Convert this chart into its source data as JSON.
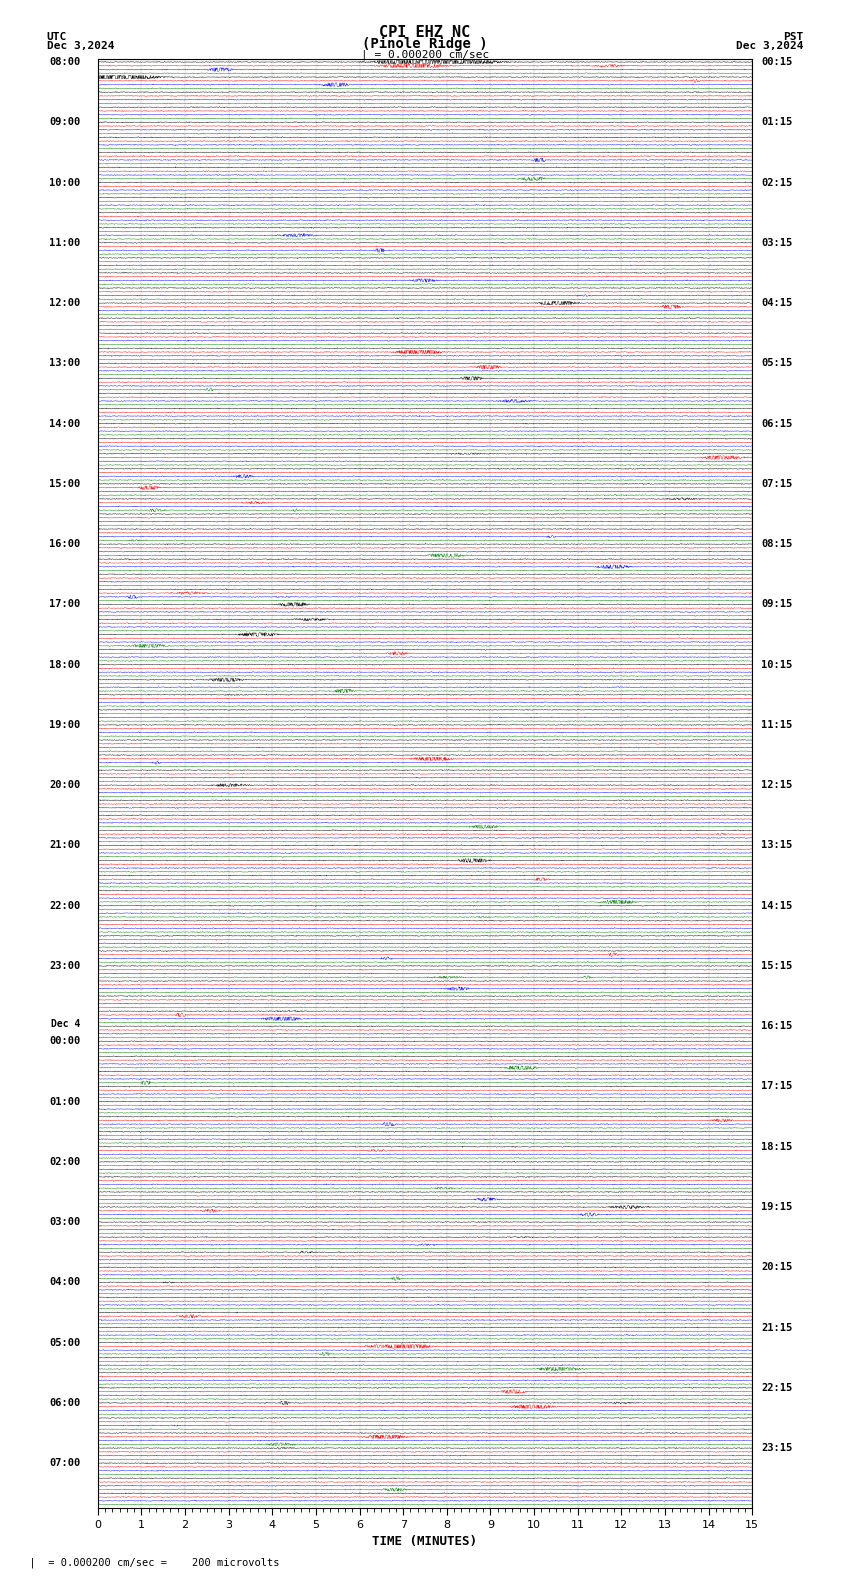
{
  "title_line1": "CPI EHZ NC",
  "title_line2": "(Pinole Ridge )",
  "scale_label": "| = 0.000200 cm/sec",
  "footer_label": "= 0.000200 cm/sec =    200 microvolts",
  "utc_label": "UTC",
  "utc_date": "Dec 3,2024",
  "pst_label": "PST",
  "pst_date": "Dec 3,2024",
  "xlabel": "TIME (MINUTES)",
  "bg_color": "#ffffff",
  "trace_colors": [
    "black",
    "red",
    "blue",
    "green"
  ],
  "left_times": [
    "08:00",
    "",
    "",
    "",
    "09:00",
    "",
    "",
    "",
    "10:00",
    "",
    "",
    "",
    "11:00",
    "",
    "",
    "",
    "12:00",
    "",
    "",
    "",
    "13:00",
    "",
    "",
    "",
    "14:00",
    "",
    "",
    "",
    "15:00",
    "",
    "",
    "",
    "16:00",
    "",
    "",
    "",
    "17:00",
    "",
    "",
    "",
    "18:00",
    "",
    "",
    "",
    "19:00",
    "",
    "",
    "",
    "20:00",
    "",
    "",
    "",
    "21:00",
    "",
    "",
    "",
    "22:00",
    "",
    "",
    "",
    "23:00",
    "",
    "",
    "",
    "Dec 4",
    "00:00",
    "",
    "",
    "",
    "01:00",
    "",
    "",
    "",
    "02:00",
    "",
    "",
    "",
    "03:00",
    "",
    "",
    "",
    "04:00",
    "",
    "",
    "",
    "05:00",
    "",
    "",
    "",
    "06:00",
    "",
    "",
    "",
    "07:00",
    "",
    ""
  ],
  "right_times": [
    "00:15",
    "",
    "",
    "",
    "01:15",
    "",
    "",
    "",
    "02:15",
    "",
    "",
    "",
    "03:15",
    "",
    "",
    "",
    "04:15",
    "",
    "",
    "",
    "05:15",
    "",
    "",
    "",
    "06:15",
    "",
    "",
    "",
    "07:15",
    "",
    "",
    "",
    "08:15",
    "",
    "",
    "",
    "09:15",
    "",
    "",
    "",
    "10:15",
    "",
    "",
    "",
    "11:15",
    "",
    "",
    "",
    "12:15",
    "",
    "",
    "",
    "13:15",
    "",
    "",
    "",
    "14:15",
    "",
    "",
    "",
    "15:15",
    "",
    "",
    "",
    "16:15",
    "",
    "",
    "",
    "17:15",
    "",
    "",
    "",
    "18:15",
    "",
    "",
    "",
    "19:15",
    "",
    "",
    "",
    "20:15",
    "",
    "",
    "",
    "21:15",
    "",
    "",
    "",
    "22:15",
    "",
    "",
    "",
    "23:15",
    "",
    ""
  ],
  "n_rows": 96,
  "n_traces_per_row": 4,
  "minutes_per_row": 15,
  "font_family": "monospace",
  "title_fontsize": 11,
  "label_fontsize": 8,
  "tick_fontsize": 7.5
}
